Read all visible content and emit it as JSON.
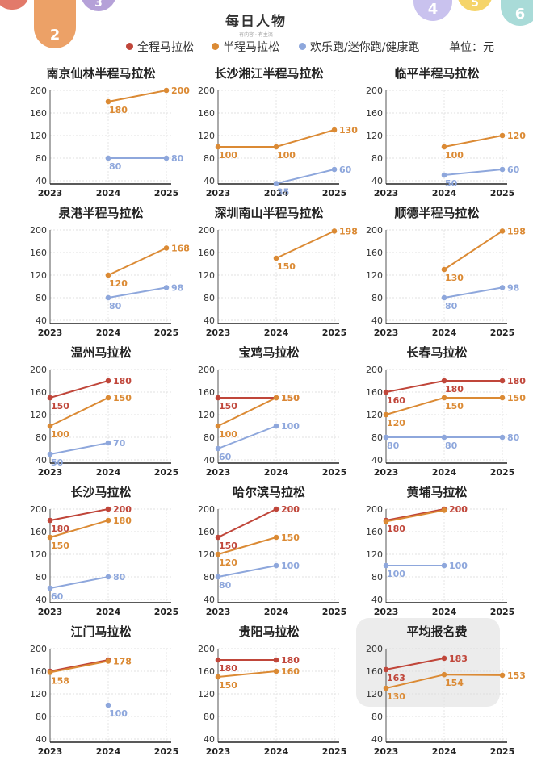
{
  "brand": {
    "name": "每日人物",
    "tagline": "有内容 · 有主流"
  },
  "corner_numbers": [
    "2",
    "3",
    "4",
    "5",
    "6"
  ],
  "legend": {
    "items": [
      {
        "label": "全程马拉松",
        "color": "#c0463a"
      },
      {
        "label": "半程马拉松",
        "color": "#db8a34"
      },
      {
        "label": "欢乐跑/迷你跑/健康跑",
        "color": "#8ea7dc"
      }
    ],
    "unit": "单位：元"
  },
  "chart_data": [
    {
      "type": "line",
      "title": "南京仙林半程马拉松",
      "x": [
        "2023",
        "2024",
        "2025"
      ],
      "yticks": [
        "200",
        "160",
        "120",
        "80",
        "40"
      ],
      "ylim": [
        40,
        200
      ],
      "series": [
        {
          "name": "半程马拉松",
          "color": "#db8a34",
          "values": [
            null,
            180,
            200
          ]
        },
        {
          "name": "欢乐跑/迷你跑/健康跑",
          "color": "#8ea7dc",
          "values": [
            null,
            80,
            80
          ]
        }
      ]
    },
    {
      "type": "line",
      "title": "长沙湘江半程马拉松",
      "x": [
        "2023",
        "2024",
        "2025"
      ],
      "yticks": [
        "200",
        "160",
        "120",
        "80",
        "40"
      ],
      "ylim": [
        40,
        200
      ],
      "series": [
        {
          "name": "半程马拉松",
          "color": "#db8a34",
          "values": [
            100,
            100,
            130
          ]
        },
        {
          "name": "欢乐跑/迷你跑/健康跑",
          "color": "#8ea7dc",
          "values": [
            null,
            35,
            60
          ]
        }
      ]
    },
    {
      "type": "line",
      "title": "临平半程马拉松",
      "x": [
        "2023",
        "2024",
        "2025"
      ],
      "yticks": [
        "200",
        "160",
        "120",
        "80",
        "40"
      ],
      "ylim": [
        40,
        200
      ],
      "series": [
        {
          "name": "半程马拉松",
          "color": "#db8a34",
          "values": [
            null,
            100,
            120
          ]
        },
        {
          "name": "欢乐跑/迷你跑/健康跑",
          "color": "#8ea7dc",
          "values": [
            null,
            50,
            60
          ]
        }
      ]
    },
    {
      "type": "line",
      "title": "泉港半程马拉松",
      "x": [
        "2023",
        "2024",
        "2025"
      ],
      "yticks": [
        "200",
        "160",
        "120",
        "80",
        "40"
      ],
      "ylim": [
        40,
        200
      ],
      "series": [
        {
          "name": "半程马拉松",
          "color": "#db8a34",
          "values": [
            null,
            120,
            168
          ]
        },
        {
          "name": "欢乐跑/迷你跑/健康跑",
          "color": "#8ea7dc",
          "values": [
            null,
            80,
            98
          ]
        }
      ]
    },
    {
      "type": "line",
      "title": "深圳南山半程马拉松",
      "x": [
        "2023",
        "2024",
        "2025"
      ],
      "yticks": [
        "200",
        "160",
        "120",
        "80",
        "40"
      ],
      "ylim": [
        40,
        200
      ],
      "series": [
        {
          "name": "半程马拉松",
          "color": "#db8a34",
          "values": [
            null,
            150,
            198
          ]
        }
      ]
    },
    {
      "type": "line",
      "title": "顺德半程马拉松",
      "x": [
        "2023",
        "2024",
        "2025"
      ],
      "yticks": [
        "200",
        "160",
        "120",
        "80",
        "40"
      ],
      "ylim": [
        40,
        200
      ],
      "series": [
        {
          "name": "半程马拉松",
          "color": "#db8a34",
          "values": [
            null,
            130,
            198
          ]
        },
        {
          "name": "欢乐跑/迷你跑/健康跑",
          "color": "#8ea7dc",
          "values": [
            null,
            80,
            98
          ]
        }
      ]
    },
    {
      "type": "line",
      "title": "温州马拉松",
      "x": [
        "2023",
        "2024",
        "2025"
      ],
      "yticks": [
        "200",
        "160",
        "120",
        "80",
        "40"
      ],
      "ylim": [
        40,
        200
      ],
      "series": [
        {
          "name": "全程马拉松",
          "color": "#c0463a",
          "values": [
            150,
            180,
            null
          ]
        },
        {
          "name": "半程马拉松",
          "color": "#db8a34",
          "values": [
            100,
            150,
            null
          ]
        },
        {
          "name": "欢乐跑/迷你跑/健康跑",
          "color": "#8ea7dc",
          "values": [
            50,
            70,
            null
          ]
        }
      ]
    },
    {
      "type": "line",
      "title": "宝鸡马拉松",
      "x": [
        "2023",
        "2024",
        "2025"
      ],
      "yticks": [
        "200",
        "160",
        "120",
        "80",
        "40"
      ],
      "ylim": [
        40,
        200
      ],
      "series": [
        {
          "name": "全程马拉松",
          "color": "#c0463a",
          "values": [
            150,
            150,
            null
          ]
        },
        {
          "name": "半程马拉松",
          "color": "#db8a34",
          "values": [
            100,
            150,
            null
          ]
        },
        {
          "name": "欢乐跑/迷你跑/健康跑",
          "color": "#8ea7dc",
          "values": [
            60,
            100,
            null
          ]
        }
      ]
    },
    {
      "type": "line",
      "title": "长春马拉松",
      "x": [
        "2023",
        "2024",
        "2025"
      ],
      "yticks": [
        "200",
        "160",
        "120",
        "80",
        "40"
      ],
      "ylim": [
        40,
        200
      ],
      "series": [
        {
          "name": "全程马拉松",
          "color": "#c0463a",
          "values": [
            160,
            180,
            180
          ]
        },
        {
          "name": "半程马拉松",
          "color": "#db8a34",
          "values": [
            120,
            150,
            150
          ]
        },
        {
          "name": "欢乐跑/迷你跑/健康跑",
          "color": "#8ea7dc",
          "values": [
            80,
            80,
            80
          ]
        }
      ]
    },
    {
      "type": "line",
      "title": "长沙马拉松",
      "x": [
        "2023",
        "2024",
        "2025"
      ],
      "yticks": [
        "200",
        "160",
        "120",
        "80",
        "40"
      ],
      "ylim": [
        40,
        200
      ],
      "series": [
        {
          "name": "全程马拉松",
          "color": "#c0463a",
          "values": [
            180,
            200,
            null
          ]
        },
        {
          "name": "半程马拉松",
          "color": "#db8a34",
          "values": [
            150,
            180,
            null
          ]
        },
        {
          "name": "欢乐跑/迷你跑/健康跑",
          "color": "#8ea7dc",
          "values": [
            60,
            80,
            null
          ]
        }
      ]
    },
    {
      "type": "line",
      "title": "哈尔滨马拉松",
      "x": [
        "2023",
        "2024",
        "2025"
      ],
      "yticks": [
        "200",
        "160",
        "120",
        "80",
        "40"
      ],
      "ylim": [
        40,
        200
      ],
      "series": [
        {
          "name": "全程马拉松",
          "color": "#c0463a",
          "values": [
            150,
            200,
            null
          ]
        },
        {
          "name": "半程马拉松",
          "color": "#db8a34",
          "values": [
            120,
            150,
            null
          ]
        },
        {
          "name": "欢乐跑/迷你跑/健康跑",
          "color": "#8ea7dc",
          "values": [
            80,
            100,
            null
          ]
        }
      ]
    },
    {
      "type": "line",
      "title": "黄埔马拉松",
      "x": [
        "2023",
        "2024",
        "2025"
      ],
      "yticks": [
        "200",
        "160",
        "120",
        "80",
        "40"
      ],
      "ylim": [
        40,
        200
      ],
      "series": [
        {
          "name": "全程马拉松",
          "color": "#c0463a",
          "values": [
            180,
            200,
            null
          ]
        },
        {
          "name": "半程马拉松",
          "color": "#db8a34",
          "values": [
            178,
            198,
            null
          ],
          "hide_labels": true
        },
        {
          "name": "欢乐跑/迷你跑/健康跑",
          "color": "#8ea7dc",
          "values": [
            100,
            100,
            null
          ]
        }
      ]
    },
    {
      "type": "line",
      "title": "江门马拉松",
      "x": [
        "2023",
        "2024",
        "2025"
      ],
      "yticks": [
        "200",
        "160",
        "120",
        "80",
        "40"
      ],
      "ylim": [
        40,
        200
      ],
      "series": [
        {
          "name": "全程马拉松",
          "color": "#c0463a",
          "values": [
            160,
            180,
            null
          ],
          "hide_labels": true
        },
        {
          "name": "半程马拉松",
          "color": "#db8a34",
          "values": [
            158,
            178,
            null
          ]
        },
        {
          "name": "欢乐跑/迷你跑/健康跑",
          "color": "#8ea7dc",
          "values": [
            null,
            100,
            null
          ]
        }
      ]
    },
    {
      "type": "line",
      "title": "贵阳马拉松",
      "x": [
        "2023",
        "2024",
        "2025"
      ],
      "yticks": [
        "200",
        "160",
        "120",
        "80",
        "40"
      ],
      "ylim": [
        40,
        200
      ],
      "series": [
        {
          "name": "全程马拉松",
          "color": "#c0463a",
          "values": [
            180,
            180,
            null
          ]
        },
        {
          "name": "半程马拉松",
          "color": "#db8a34",
          "values": [
            150,
            160,
            null
          ]
        }
      ]
    },
    {
      "type": "line",
      "title": "平均报名费",
      "highlight": true,
      "x": [
        "2023",
        "2024",
        "2025"
      ],
      "yticks": [
        "200",
        "160",
        "120",
        "80",
        "40"
      ],
      "ylim": [
        40,
        200
      ],
      "series": [
        {
          "name": "全程马拉松",
          "color": "#c0463a",
          "values": [
            163,
            183,
            null
          ]
        },
        {
          "name": "半程马拉松",
          "color": "#db8a34",
          "values": [
            130,
            154,
            153
          ]
        }
      ]
    }
  ]
}
